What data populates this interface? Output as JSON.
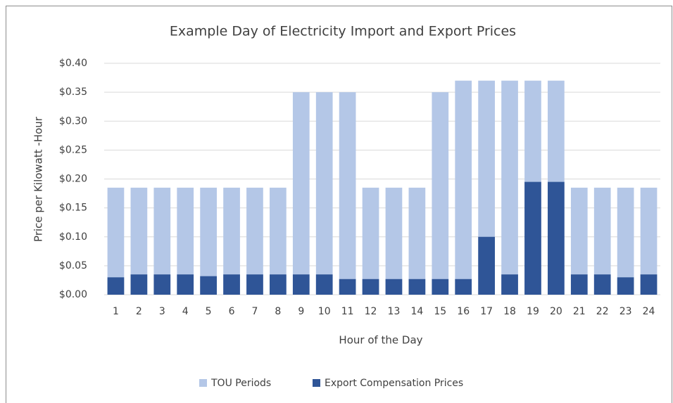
{
  "chart_data": {
    "type": "bar",
    "title": "Example Day of Electricity Import and Export Prices",
    "x_label": "Hour of the Day",
    "y_label": "Price per Kilowatt -Hour",
    "categories": [
      "1",
      "2",
      "3",
      "4",
      "5",
      "6",
      "7",
      "8",
      "9",
      "10",
      "11",
      "12",
      "13",
      "14",
      "15",
      "16",
      "17",
      "18",
      "19",
      "20",
      "21",
      "22",
      "23",
      "24"
    ],
    "series": [
      {
        "name": "TOU Periods",
        "color": "#b4c7e7",
        "values": [
          0.185,
          0.185,
          0.185,
          0.185,
          0.185,
          0.185,
          0.185,
          0.185,
          0.35,
          0.35,
          0.35,
          0.185,
          0.185,
          0.185,
          0.35,
          0.37,
          0.37,
          0.37,
          0.37,
          0.37,
          0.185,
          0.185,
          0.185,
          0.185
        ]
      },
      {
        "name": "Export Compensation Prices",
        "color": "#2f5597",
        "values": [
          0.03,
          0.035,
          0.035,
          0.035,
          0.032,
          0.035,
          0.035,
          0.035,
          0.035,
          0.035,
          0.027,
          0.027,
          0.027,
          0.027,
          0.027,
          0.027,
          0.1,
          0.035,
          0.195,
          0.195,
          0.035,
          0.035,
          0.03,
          0.035
        ]
      }
    ],
    "ylim": [
      0,
      0.4
    ],
    "yticks": [
      {
        "value": 0,
        "label": "$0.00"
      },
      {
        "value": 0.05,
        "label": "$0.05"
      },
      {
        "value": 0.1,
        "label": "$0.10"
      },
      {
        "value": 0.15,
        "label": "$0.15"
      },
      {
        "value": 0.2,
        "label": "$0.20"
      },
      {
        "value": 0.25,
        "label": "$0.25"
      },
      {
        "value": 0.3,
        "label": "$0.30"
      },
      {
        "value": 0.35,
        "label": "$0.35"
      },
      {
        "value": 0.4,
        "label": "$0.40"
      }
    ],
    "grid": true,
    "legend": "bottom"
  }
}
